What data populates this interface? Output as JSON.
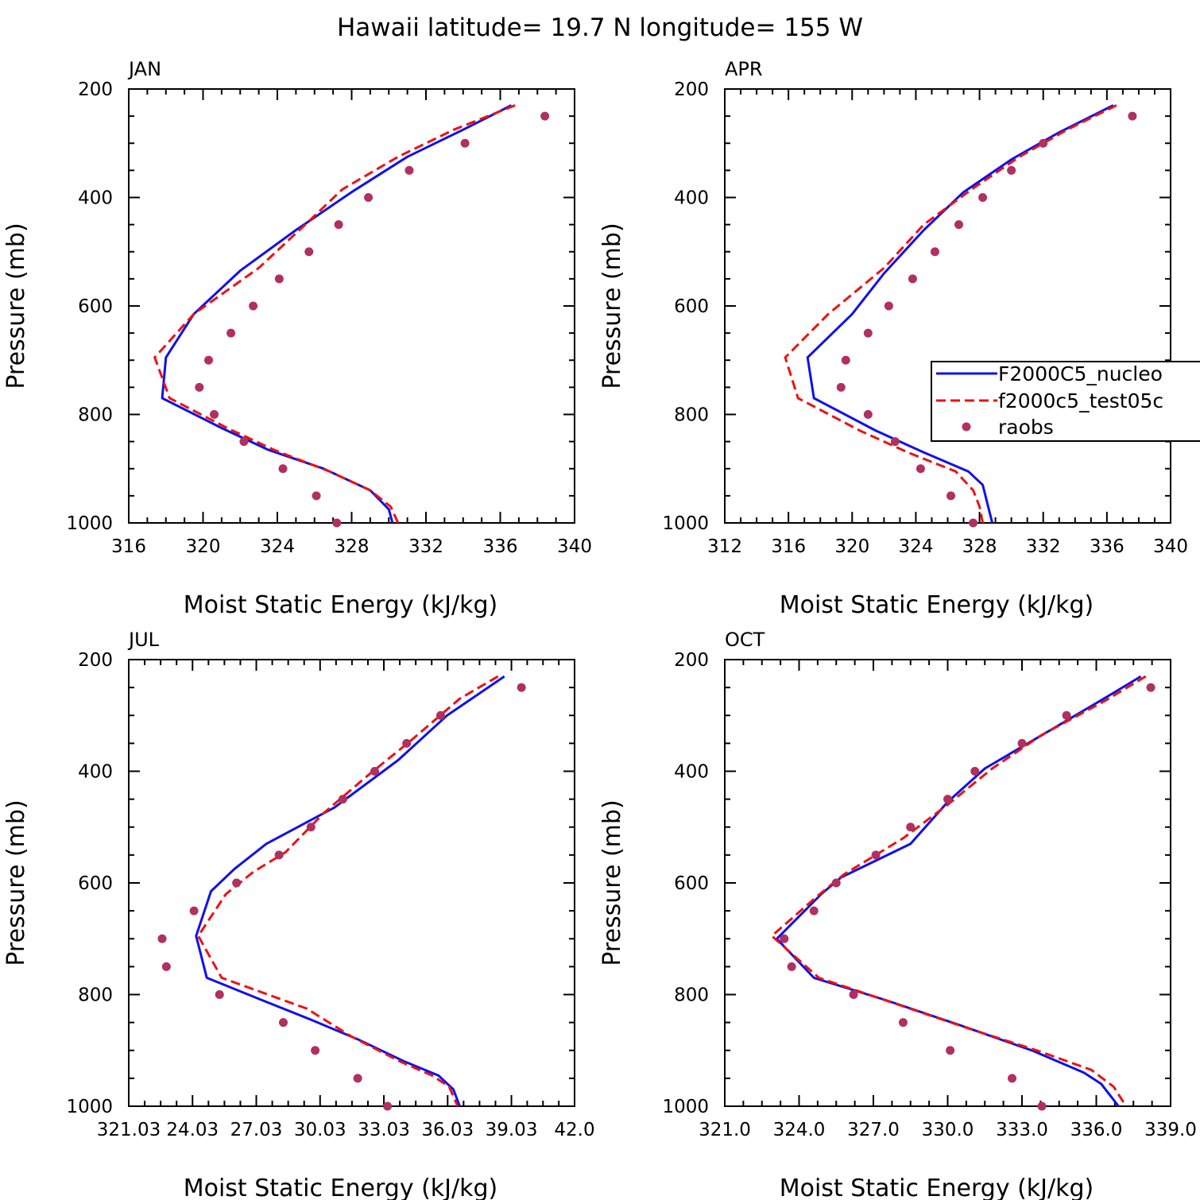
{
  "figure_title": "Hawaii  latitude= 19.7 N longitude= 155 W",
  "colors": {
    "model_a": "#1010ee",
    "model_b": "#ee1111",
    "obs": "#b03060"
  },
  "legend": {
    "entries": [
      {
        "label": "F2000C5_nucleo",
        "style": "solid",
        "color": "#1010ee"
      },
      {
        "label": "f2000c5_test05c",
        "style": "dashed",
        "color": "#ee1111"
      },
      {
        "label": "raobs",
        "style": "marker",
        "color": "#b03060"
      }
    ]
  },
  "chart_data": [
    {
      "type": "line",
      "title": "JAN",
      "xlabel": "Moist Static Energy (kJ/kg)",
      "ylabel": "Pressure (mb)",
      "xlim": [
        316,
        340
      ],
      "ylim": [
        200,
        1000
      ],
      "y_inverted": true,
      "xticks": [
        316,
        320,
        324,
        328,
        332,
        336,
        340
      ],
      "xtick_labels": [
        "316",
        "320",
        "324",
        "328",
        "332",
        "336",
        "340"
      ],
      "yticks": [
        200,
        400,
        600,
        800,
        1000
      ],
      "ytick_labels": [
        "200",
        "400",
        "600",
        "800",
        "1000"
      ],
      "series": [
        {
          "name": "F2000C5_nucleo",
          "style": "solid",
          "points": [
            [
              336.6,
              230
            ],
            [
              334,
              275
            ],
            [
              331,
              325
            ],
            [
              328,
              390
            ],
            [
              325,
              460
            ],
            [
              322,
              535
            ],
            [
              319.5,
              615
            ],
            [
              318,
              695
            ],
            [
              317.8,
              770
            ],
            [
              321,
              825
            ],
            [
              323.5,
              865
            ],
            [
              326.5,
              900
            ],
            [
              329,
              940
            ],
            [
              330,
              975
            ],
            [
              330.2,
              1000
            ]
          ]
        },
        {
          "name": "f2000c5_test05c",
          "style": "dashed",
          "points": [
            [
              336.8,
              230
            ],
            [
              333.5,
              275
            ],
            [
              330.5,
              325
            ],
            [
              327.5,
              385
            ],
            [
              325.5,
              450
            ],
            [
              323,
              530
            ],
            [
              319.5,
              615
            ],
            [
              317.4,
              695
            ],
            [
              318.2,
              770
            ],
            [
              321.3,
              825
            ],
            [
              323.8,
              865
            ],
            [
              326.8,
              905
            ],
            [
              329,
              940
            ],
            [
              330.1,
              970
            ],
            [
              330.5,
              1000
            ]
          ]
        },
        {
          "name": "raobs",
          "style": "marker",
          "points": [
            [
              338.4,
              250
            ],
            [
              334.1,
              300
            ],
            [
              331.1,
              350
            ],
            [
              328.9,
              400
            ],
            [
              327.3,
              450
            ],
            [
              325.7,
              500
            ],
            [
              324.1,
              550
            ],
            [
              322.7,
              600
            ],
            [
              321.5,
              650
            ],
            [
              320.3,
              700
            ],
            [
              319.8,
              750
            ],
            [
              320.6,
              800
            ],
            [
              322.2,
              850
            ],
            [
              324.3,
              900
            ],
            [
              326.1,
              950
            ],
            [
              327.2,
              1000
            ]
          ]
        }
      ]
    },
    {
      "type": "line",
      "title": "APR",
      "xlabel": "Moist Static Energy (kJ/kg)",
      "ylabel": "Pressure (mb)",
      "xlim": [
        312,
        340
      ],
      "ylim": [
        200,
        1000
      ],
      "y_inverted": true,
      "xticks": [
        312,
        316,
        320,
        324,
        328,
        332,
        336,
        340
      ],
      "xtick_labels": [
        "312",
        "316",
        "320",
        "324",
        "328",
        "332",
        "336",
        "340"
      ],
      "yticks": [
        200,
        400,
        600,
        800,
        1000
      ],
      "ytick_labels": [
        "200",
        "400",
        "600",
        "800",
        "1000"
      ],
      "series": [
        {
          "name": "F2000C5_nucleo",
          "style": "solid",
          "points": [
            [
              336.4,
              230
            ],
            [
              333,
              280
            ],
            [
              330,
              330
            ],
            [
              327,
              390
            ],
            [
              324.5,
              460
            ],
            [
              322,
              540
            ],
            [
              320,
              615
            ],
            [
              317.2,
              695
            ],
            [
              317.6,
              770
            ],
            [
              321.5,
              830
            ],
            [
              324.5,
              870
            ],
            [
              327.3,
              905
            ],
            [
              328.2,
              930
            ],
            [
              328.5,
              965
            ],
            [
              328.8,
              1000
            ]
          ]
        },
        {
          "name": "f2000c5_test05c",
          "style": "dashed",
          "points": [
            [
              336.6,
              230
            ],
            [
              333.5,
              275
            ],
            [
              330.5,
              325
            ],
            [
              327.5,
              385
            ],
            [
              324.5,
              450
            ],
            [
              322,
              530
            ],
            [
              318.5,
              615
            ],
            [
              315.8,
              695
            ],
            [
              316.6,
              770
            ],
            [
              320.5,
              830
            ],
            [
              323.5,
              870
            ],
            [
              326.5,
              905
            ],
            [
              327.6,
              940
            ],
            [
              328,
              970
            ],
            [
              328.2,
              1000
            ]
          ]
        },
        {
          "name": "raobs",
          "style": "marker",
          "points": [
            [
              337.6,
              250
            ],
            [
              332,
              300
            ],
            [
              330,
              350
            ],
            [
              328.2,
              400
            ],
            [
              326.7,
              450
            ],
            [
              325.2,
              500
            ],
            [
              323.8,
              550
            ],
            [
              322.3,
              600
            ],
            [
              321,
              650
            ],
            [
              319.6,
              700
            ],
            [
              319.3,
              750
            ],
            [
              321,
              800
            ],
            [
              322.7,
              850
            ],
            [
              324.3,
              900
            ],
            [
              326.2,
              950
            ],
            [
              327.6,
              1000
            ]
          ]
        }
      ]
    },
    {
      "type": "line",
      "title": "JUL",
      "xlabel": "Moist Static Energy (kJ/kg)",
      "ylabel": "Pressure (mb)",
      "xlim": [
        321.03,
        342.0
      ],
      "ylim": [
        200,
        1000
      ],
      "y_inverted": true,
      "xticks": [
        321.03,
        324.03,
        327.03,
        330.03,
        333.03,
        336.03,
        339.03,
        342.0
      ],
      "xtick_labels": [
        "321.03",
        "24.03",
        "27.03",
        "30.03",
        "33.03",
        "36.03",
        "39.03",
        "42.0"
      ],
      "yticks": [
        200,
        400,
        600,
        800,
        1000
      ],
      "ytick_labels": [
        "200",
        "400",
        "600",
        "800",
        "1000"
      ],
      "series": [
        {
          "name": "F2000C5_nucleo",
          "style": "solid",
          "points": [
            [
              338.7,
              230
            ],
            [
              336,
              300
            ],
            [
              333.7,
              380
            ],
            [
              330.7,
              465
            ],
            [
              327.5,
              530
            ],
            [
              326,
              575
            ],
            [
              324.9,
              615
            ],
            [
              324.2,
              695
            ],
            [
              324.7,
              770
            ],
            [
              327.3,
              810
            ],
            [
              329.6,
              845
            ],
            [
              331.8,
              880
            ],
            [
              334,
              920
            ],
            [
              335.6,
              945
            ],
            [
              336.3,
              970
            ],
            [
              336.6,
              1000
            ]
          ]
        },
        {
          "name": "f2000c5_test05c",
          "style": "dashed",
          "points": [
            [
              338.4,
              230
            ],
            [
              336.6,
              270
            ],
            [
              334.3,
              345
            ],
            [
              332.2,
              410
            ],
            [
              330.2,
              475
            ],
            [
              328.4,
              545
            ],
            [
              326.9,
              580
            ],
            [
              325.6,
              620
            ],
            [
              324.3,
              695
            ],
            [
              325.4,
              770
            ],
            [
              329.4,
              825
            ],
            [
              331.5,
              875
            ],
            [
              333.8,
              920
            ],
            [
              335.3,
              945
            ],
            [
              336.1,
              965
            ],
            [
              336.5,
              1000
            ]
          ]
        },
        {
          "name": "raobs",
          "style": "marker",
          "points": [
            [
              339.5,
              250
            ],
            [
              335.7,
              300
            ],
            [
              334.1,
              350
            ],
            [
              332.6,
              400
            ],
            [
              331.1,
              450
            ],
            [
              329.6,
              500
            ],
            [
              328.1,
              550
            ],
            [
              326.1,
              600
            ],
            [
              324.1,
              650
            ],
            [
              322.6,
              700
            ],
            [
              322.8,
              750
            ],
            [
              325.3,
              800
            ],
            [
              328.3,
              850
            ],
            [
              329.8,
              900
            ],
            [
              331.8,
              950
            ],
            [
              333.2,
              1000
            ]
          ]
        }
      ]
    },
    {
      "type": "line",
      "title": "OCT",
      "xlabel": "Moist Static Energy (kJ/kg)",
      "ylabel": "Pressure (mb)",
      "xlim": [
        321,
        339
      ],
      "ylim": [
        200,
        1000
      ],
      "y_inverted": true,
      "xticks": [
        321,
        324,
        327,
        330,
        333,
        336,
        339
      ],
      "xtick_labels": [
        "321.0",
        "324.0",
        "327.0",
        "330.0",
        "333.0",
        "336.0",
        "339.0"
      ],
      "yticks": [
        200,
        400,
        600,
        800,
        1000
      ],
      "ytick_labels": [
        "200",
        "400",
        "600",
        "800",
        "1000"
      ],
      "series": [
        {
          "name": "F2000C5_nucleo",
          "style": "solid",
          "points": [
            [
              337.8,
              230
            ],
            [
              336.3,
              270
            ],
            [
              334.2,
              325
            ],
            [
              331.5,
              395
            ],
            [
              330,
              455
            ],
            [
              328.5,
              530
            ],
            [
              325.7,
              590
            ],
            [
              324.9,
              620
            ],
            [
              323.1,
              700
            ],
            [
              324.6,
              770
            ],
            [
              327.5,
              810
            ],
            [
              330.5,
              855
            ],
            [
              333.4,
              900
            ],
            [
              335.5,
              940
            ],
            [
              336.2,
              960
            ],
            [
              336.9,
              1000
            ]
          ]
        },
        {
          "name": "f2000c5_test05c",
          "style": "dashed",
          "points": [
            [
              338,
              230
            ],
            [
              336.3,
              275
            ],
            [
              333.8,
              335
            ],
            [
              331.8,
              395
            ],
            [
              330,
              460
            ],
            [
              328.2,
              520
            ],
            [
              325.8,
              585
            ],
            [
              324.7,
              625
            ],
            [
              322.9,
              695
            ],
            [
              324.8,
              770
            ],
            [
              327.8,
              815
            ],
            [
              330.8,
              860
            ],
            [
              333.6,
              900
            ],
            [
              335.8,
              935
            ],
            [
              336.7,
              965
            ],
            [
              337.2,
              1000
            ]
          ]
        },
        {
          "name": "raobs",
          "style": "marker",
          "points": [
            [
              338.2,
              250
            ],
            [
              334.8,
              300
            ],
            [
              333,
              350
            ],
            [
              331.1,
              400
            ],
            [
              330,
              450
            ],
            [
              328.5,
              500
            ],
            [
              327.1,
              550
            ],
            [
              325.5,
              600
            ],
            [
              324.6,
              650
            ],
            [
              323.4,
              700
            ],
            [
              323.7,
              750
            ],
            [
              326.2,
              800
            ],
            [
              328.2,
              850
            ],
            [
              330.1,
              900
            ],
            [
              332.6,
              950
            ],
            [
              333.8,
              1000
            ]
          ]
        }
      ]
    }
  ]
}
